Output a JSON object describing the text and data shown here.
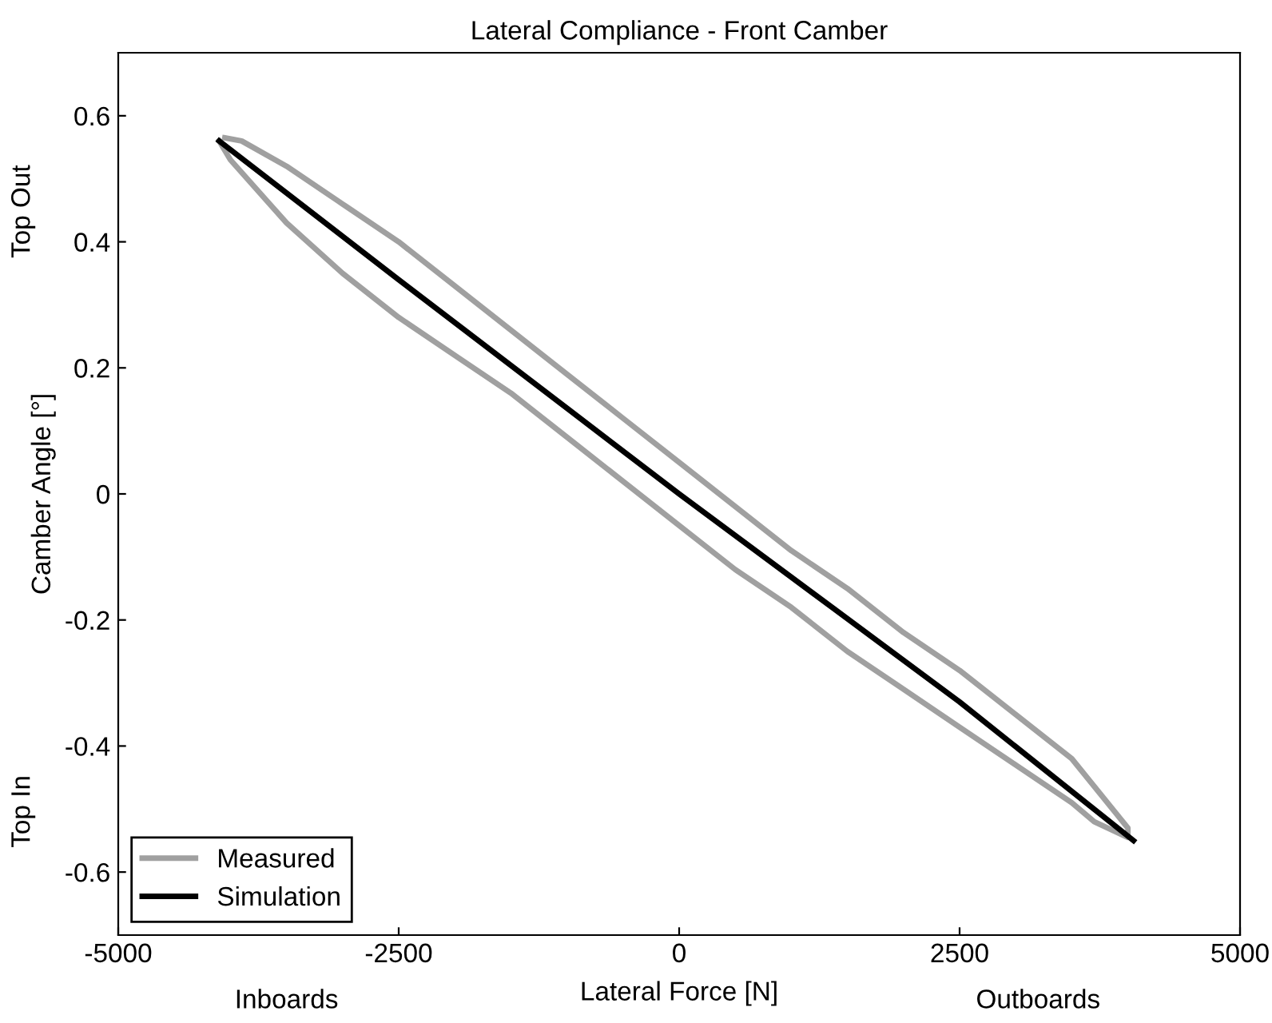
{
  "chart_data": {
    "type": "line",
    "title": "Lateral Compliance - Front Camber",
    "xlabel": "Lateral Force [N]",
    "ylabel": "Camber Angle [°]",
    "annotations": [
      "Inboards",
      "Outboards",
      "Top Out",
      "Top In"
    ],
    "xlim": [
      -5000,
      5000
    ],
    "ylim": [
      -0.7,
      0.7
    ],
    "xticks": [
      -5000,
      -2500,
      0,
      2500,
      5000
    ],
    "yticks": [
      -0.6,
      -0.4,
      -0.2,
      0,
      0.2,
      0.4,
      0.6
    ],
    "grid": false,
    "legend": "bottom left",
    "line_style": "solid",
    "marker": "none",
    "series": [
      {
        "name": "Measured",
        "color": "#a0a0a0",
        "x": [
          -4050,
          -3900,
          -3500,
          -3000,
          -2500,
          -2000,
          -1500,
          -1000,
          -500,
          0,
          500,
          1000,
          1500,
          2000,
          2500,
          3000,
          3500,
          4000,
          4000,
          3700,
          3500,
          3000,
          2500,
          2000,
          1500,
          1000,
          500,
          0,
          -500,
          -1000,
          -1500,
          -2000,
          -2500,
          -3000,
          -3500,
          -4000,
          -4100
        ],
        "values": [
          0.565,
          0.56,
          0.52,
          0.46,
          0.4,
          0.33,
          0.26,
          0.19,
          0.12,
          0.05,
          -0.02,
          -0.09,
          -0.15,
          -0.22,
          -0.28,
          -0.35,
          -0.42,
          -0.53,
          -0.545,
          -0.52,
          -0.49,
          -0.43,
          -0.37,
          -0.31,
          -0.25,
          -0.18,
          -0.12,
          -0.05,
          0.02,
          0.09,
          0.16,
          0.22,
          0.28,
          0.35,
          0.43,
          0.53,
          0.56
        ]
      },
      {
        "name": "Simulation",
        "color": "#000000",
        "x": [
          -4100,
          -2500,
          0,
          2500,
          4050
        ],
        "values": [
          0.56,
          0.34,
          0,
          -0.33,
          -0.55
        ]
      }
    ]
  }
}
